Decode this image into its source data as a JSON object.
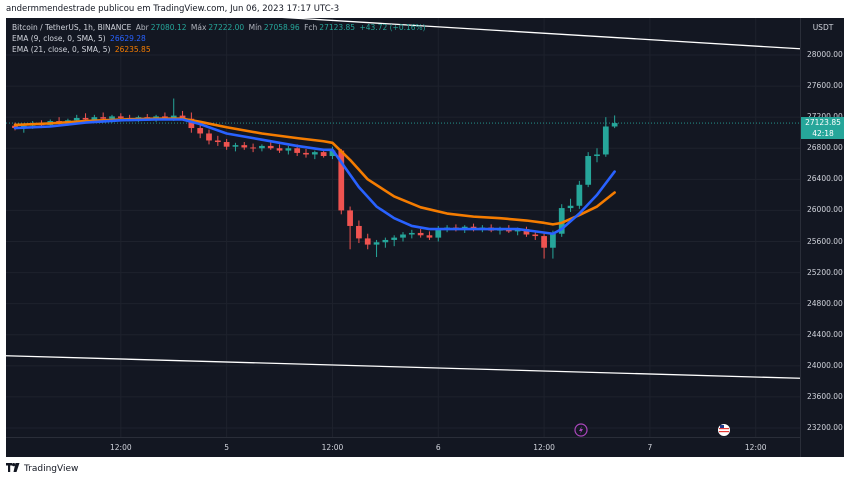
{
  "header": {
    "publisher_line": "andermmendestrade publicou em TradingView.com, Jun 06, 2023 17:17 UTC-3"
  },
  "legend": {
    "symbol": "Bitcoin / TetherUS, 1h, BINANCE",
    "open_label": "Abr",
    "open_value": "27080.12",
    "high_label": "Máx",
    "high_value": "27222.00",
    "low_label": "Mín",
    "low_value": "27058.96",
    "close_label": "Fch",
    "close_value": "27123.85",
    "change": "+43.72 (+0.16%)",
    "ema9_label": "EMA (9, close, 0, SMA, 5)",
    "ema9_value": "26629.28",
    "ema21_label": "EMA (21, close, 0, SMA, 5)",
    "ema21_value": "26235.85"
  },
  "price_axis": {
    "currency": "USDT",
    "current_price": "27123.85",
    "countdown": "42:18"
  },
  "footer": {
    "brand": "TradingView"
  },
  "colors": {
    "up": "#26a69a",
    "down": "#ef5350",
    "ema9": "#2962ff",
    "ema21": "#f57c00",
    "background": "#131722",
    "trendline": "#ffffff"
  },
  "icons": [
    "lightning-event-icon",
    "us-flag-event-icon",
    "tradingview-logo-icon"
  ],
  "chart_data": {
    "type": "candlestick",
    "symbol": "Bitcoin / TetherUS",
    "interval": "1h",
    "exchange": "BINANCE",
    "y_ticks": [
      23200,
      23600,
      24000,
      24400,
      24800,
      25200,
      25600,
      26000,
      26400,
      26800,
      27200,
      27600,
      28000
    ],
    "ylim": [
      23000,
      28500
    ],
    "x_tick_labels": [
      "12:00",
      "5",
      "12:00",
      "6",
      "12:00",
      "7",
      "12:00"
    ],
    "x_tick_hours": [
      12,
      24,
      36,
      48,
      60,
      72,
      84
    ],
    "xlim": [
      0,
      88
    ],
    "candles": [
      {
        "t": 0,
        "o": 27090,
        "h": 27130,
        "l": 27030,
        "c": 27060
      },
      {
        "t": 1,
        "o": 27060,
        "h": 27110,
        "l": 27000,
        "c": 27090
      },
      {
        "t": 2,
        "o": 27090,
        "h": 27150,
        "l": 27050,
        "c": 27110
      },
      {
        "t": 3,
        "o": 27110,
        "h": 27160,
        "l": 27060,
        "c": 27100
      },
      {
        "t": 4,
        "o": 27100,
        "h": 27170,
        "l": 27070,
        "c": 27150
      },
      {
        "t": 5,
        "o": 27150,
        "h": 27200,
        "l": 27100,
        "c": 27130
      },
      {
        "t": 6,
        "o": 27130,
        "h": 27180,
        "l": 27090,
        "c": 27160
      },
      {
        "t": 7,
        "o": 27160,
        "h": 27230,
        "l": 27120,
        "c": 27190
      },
      {
        "t": 8,
        "o": 27190,
        "h": 27250,
        "l": 27140,
        "c": 27170
      },
      {
        "t": 9,
        "o": 27170,
        "h": 27230,
        "l": 27130,
        "c": 27200
      },
      {
        "t": 10,
        "o": 27200,
        "h": 27260,
        "l": 27150,
        "c": 27180
      },
      {
        "t": 11,
        "o": 27180,
        "h": 27230,
        "l": 27130,
        "c": 27210
      },
      {
        "t": 12,
        "o": 27210,
        "h": 27250,
        "l": 27160,
        "c": 27190
      },
      {
        "t": 13,
        "o": 27190,
        "h": 27230,
        "l": 27150,
        "c": 27180
      },
      {
        "t": 14,
        "o": 27180,
        "h": 27220,
        "l": 27140,
        "c": 27200
      },
      {
        "t": 15,
        "o": 27200,
        "h": 27240,
        "l": 27160,
        "c": 27180
      },
      {
        "t": 16,
        "o": 27180,
        "h": 27230,
        "l": 27140,
        "c": 27210
      },
      {
        "t": 17,
        "o": 27210,
        "h": 27260,
        "l": 27170,
        "c": 27190
      },
      {
        "t": 18,
        "o": 27190,
        "h": 27440,
        "l": 27150,
        "c": 27220
      },
      {
        "t": 19,
        "o": 27220,
        "h": 27280,
        "l": 27170,
        "c": 27180
      },
      {
        "t": 20,
        "o": 27180,
        "h": 27260,
        "l": 27000,
        "c": 27060
      },
      {
        "t": 21,
        "o": 27060,
        "h": 27120,
        "l": 26930,
        "c": 26990
      },
      {
        "t": 22,
        "o": 26990,
        "h": 27040,
        "l": 26850,
        "c": 26900
      },
      {
        "t": 23,
        "o": 26900,
        "h": 26960,
        "l": 26830,
        "c": 26880
      },
      {
        "t": 24,
        "o": 26880,
        "h": 26920,
        "l": 26780,
        "c": 26820
      },
      {
        "t": 25,
        "o": 26820,
        "h": 26870,
        "l": 26760,
        "c": 26840
      },
      {
        "t": 26,
        "o": 26840,
        "h": 26880,
        "l": 26780,
        "c": 26810
      },
      {
        "t": 27,
        "o": 26810,
        "h": 26860,
        "l": 26750,
        "c": 26800
      },
      {
        "t": 28,
        "o": 26800,
        "h": 26850,
        "l": 26760,
        "c": 26830
      },
      {
        "t": 29,
        "o": 26830,
        "h": 26880,
        "l": 26780,
        "c": 26800
      },
      {
        "t": 30,
        "o": 26800,
        "h": 26850,
        "l": 26740,
        "c": 26770
      },
      {
        "t": 31,
        "o": 26770,
        "h": 26830,
        "l": 26720,
        "c": 26800
      },
      {
        "t": 32,
        "o": 26800,
        "h": 26850,
        "l": 26700,
        "c": 26740
      },
      {
        "t": 33,
        "o": 26740,
        "h": 26790,
        "l": 26680,
        "c": 26720
      },
      {
        "t": 34,
        "o": 26720,
        "h": 26770,
        "l": 26660,
        "c": 26750
      },
      {
        "t": 35,
        "o": 26750,
        "h": 26790,
        "l": 26680,
        "c": 26700
      },
      {
        "t": 36,
        "o": 26700,
        "h": 26820,
        "l": 26660,
        "c": 26770
      },
      {
        "t": 37,
        "o": 26770,
        "h": 26790,
        "l": 25950,
        "c": 26000
      },
      {
        "t": 38,
        "o": 26000,
        "h": 26050,
        "l": 25500,
        "c": 25800
      },
      {
        "t": 39,
        "o": 25800,
        "h": 25870,
        "l": 25580,
        "c": 25640
      },
      {
        "t": 40,
        "o": 25640,
        "h": 25700,
        "l": 25500,
        "c": 25560
      },
      {
        "t": 41,
        "o": 25560,
        "h": 25620,
        "l": 25400,
        "c": 25590
      },
      {
        "t": 42,
        "o": 25590,
        "h": 25650,
        "l": 25520,
        "c": 25620
      },
      {
        "t": 43,
        "o": 25620,
        "h": 25680,
        "l": 25540,
        "c": 25650
      },
      {
        "t": 44,
        "o": 25650,
        "h": 25720,
        "l": 25600,
        "c": 25690
      },
      {
        "t": 45,
        "o": 25690,
        "h": 25750,
        "l": 25640,
        "c": 25710
      },
      {
        "t": 46,
        "o": 25710,
        "h": 25760,
        "l": 25650,
        "c": 25680
      },
      {
        "t": 47,
        "o": 25680,
        "h": 25730,
        "l": 25620,
        "c": 25650
      },
      {
        "t": 48,
        "o": 25650,
        "h": 25800,
        "l": 25600,
        "c": 25760
      },
      {
        "t": 49,
        "o": 25760,
        "h": 25810,
        "l": 25720,
        "c": 25780
      },
      {
        "t": 50,
        "o": 25780,
        "h": 25820,
        "l": 25730,
        "c": 25760
      },
      {
        "t": 51,
        "o": 25760,
        "h": 25810,
        "l": 25710,
        "c": 25790
      },
      {
        "t": 52,
        "o": 25790,
        "h": 25830,
        "l": 25730,
        "c": 25760
      },
      {
        "t": 53,
        "o": 25760,
        "h": 25810,
        "l": 25720,
        "c": 25780
      },
      {
        "t": 54,
        "o": 25780,
        "h": 25820,
        "l": 25720,
        "c": 25740
      },
      {
        "t": 55,
        "o": 25740,
        "h": 25790,
        "l": 25690,
        "c": 25770
      },
      {
        "t": 56,
        "o": 25770,
        "h": 25810,
        "l": 25710,
        "c": 25730
      },
      {
        "t": 57,
        "o": 25730,
        "h": 25780,
        "l": 25680,
        "c": 25760
      },
      {
        "t": 58,
        "o": 25760,
        "h": 25790,
        "l": 25660,
        "c": 25690
      },
      {
        "t": 59,
        "o": 25690,
        "h": 25740,
        "l": 25620,
        "c": 25670
      },
      {
        "t": 60,
        "o": 25670,
        "h": 25720,
        "l": 25380,
        "c": 25520
      },
      {
        "t": 61,
        "o": 25520,
        "h": 25740,
        "l": 25380,
        "c": 25700
      },
      {
        "t": 62,
        "o": 25700,
        "h": 26080,
        "l": 25660,
        "c": 26030
      },
      {
        "t": 63,
        "o": 26030,
        "h": 26150,
        "l": 25980,
        "c": 26060
      },
      {
        "t": 64,
        "o": 26060,
        "h": 26380,
        "l": 26020,
        "c": 26330
      },
      {
        "t": 65,
        "o": 26330,
        "h": 26750,
        "l": 26300,
        "c": 26700
      },
      {
        "t": 66,
        "o": 26700,
        "h": 26800,
        "l": 26620,
        "c": 26720
      },
      {
        "t": 67,
        "o": 26720,
        "h": 27200,
        "l": 26690,
        "c": 27080
      },
      {
        "t": 68,
        "o": 27080,
        "h": 27222,
        "l": 27058.96,
        "c": 27123.85
      }
    ],
    "ema9": [
      [
        0,
        27060
      ],
      [
        4,
        27080
      ],
      [
        8,
        27130
      ],
      [
        12,
        27160
      ],
      [
        16,
        27170
      ],
      [
        19,
        27170
      ],
      [
        21,
        27110
      ],
      [
        24,
        26990
      ],
      [
        28,
        26910
      ],
      [
        32,
        26830
      ],
      [
        35,
        26780
      ],
      [
        36,
        26780
      ],
      [
        37,
        26620
      ],
      [
        39,
        26300
      ],
      [
        41,
        26050
      ],
      [
        43,
        25900
      ],
      [
        45,
        25800
      ],
      [
        47,
        25760
      ],
      [
        49,
        25760
      ],
      [
        51,
        25760
      ],
      [
        53,
        25760
      ],
      [
        55,
        25760
      ],
      [
        57,
        25760
      ],
      [
        59,
        25730
      ],
      [
        61,
        25700
      ],
      [
        62,
        25760
      ],
      [
        64,
        25960
      ],
      [
        66,
        26200
      ],
      [
        68,
        26500
      ]
    ],
    "ema21": [
      [
        0,
        27100
      ],
      [
        4,
        27120
      ],
      [
        8,
        27150
      ],
      [
        12,
        27170
      ],
      [
        16,
        27180
      ],
      [
        19,
        27180
      ],
      [
        21,
        27140
      ],
      [
        24,
        27070
      ],
      [
        28,
        26990
      ],
      [
        32,
        26930
      ],
      [
        35,
        26890
      ],
      [
        36,
        26870
      ],
      [
        38,
        26650
      ],
      [
        40,
        26400
      ],
      [
        43,
        26180
      ],
      [
        46,
        26040
      ],
      [
        49,
        25960
      ],
      [
        52,
        25920
      ],
      [
        55,
        25900
      ],
      [
        58,
        25870
      ],
      [
        60,
        25840
      ],
      [
        61,
        25820
      ],
      [
        62,
        25840
      ],
      [
        64,
        25940
      ],
      [
        66,
        26050
      ],
      [
        68,
        26230
      ]
    ],
    "trend_lines": [
      {
        "x1": 0,
        "y1": 28700,
        "x2": 88,
        "y2": 28080
      },
      {
        "x1": 0,
        "y1": 24130,
        "x2": 88,
        "y2": 23840
      }
    ],
    "current_price": 27123.85
  }
}
